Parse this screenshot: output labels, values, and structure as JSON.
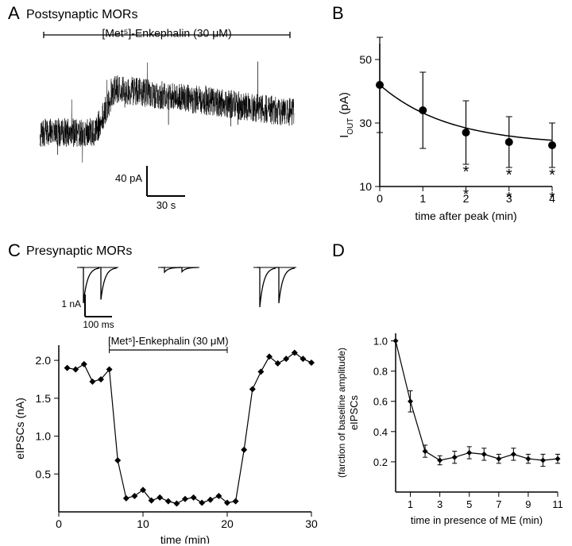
{
  "panelA": {
    "label": "A",
    "title": "Postsynaptic MORs",
    "drug_label": "[Met⁵]-Enkephalin (30 μM)",
    "scalebar": {
      "y_value": "40 pA",
      "x_value": "30 s"
    },
    "trace": {
      "baseline_y": 60,
      "peak_y": 20,
      "noise_amp": 18,
      "onset_x": 70,
      "color": "#000000"
    }
  },
  "panelB": {
    "label": "B",
    "xlabel": "time after peak (min)",
    "ylabel": "I",
    "ylabel_sub": "OUT",
    "ylabel_unit": "(pA)",
    "xlim": [
      0,
      4
    ],
    "ylim": [
      10,
      55
    ],
    "xticks": [
      0,
      1,
      2,
      3,
      4
    ],
    "yticks": [
      10,
      30,
      50
    ],
    "points": [
      {
        "x": 0,
        "y": 42,
        "err": 15,
        "star": false
      },
      {
        "x": 1,
        "y": 34,
        "err": 12,
        "star": false
      },
      {
        "x": 2,
        "y": 27,
        "err": 10,
        "star": true
      },
      {
        "x": 3,
        "y": 24,
        "err": 8,
        "star": true
      },
      {
        "x": 4,
        "y": 23,
        "err": 7,
        "star": true
      }
    ],
    "line_color": "#000000",
    "marker_fill": "#000000"
  },
  "panelC": {
    "label": "C",
    "title": "Presynaptic MORs",
    "drug_label": "[Met⁵]-Enkephalin (30 μM)",
    "inset_scalebar": {
      "y_value": "1 nA",
      "x_value": "100 ms"
    },
    "xlabel": "time (min)",
    "ylabel": "eIPSCs (nA)",
    "xlim": [
      0,
      30
    ],
    "ylim": [
      0,
      2.2
    ],
    "xticks": [
      0,
      10,
      20,
      30
    ],
    "yticks": [
      0.5,
      1.0,
      1.5,
      2.0
    ],
    "bar_start": 6,
    "bar_end": 20,
    "points": [
      {
        "x": 1,
        "y": 1.9
      },
      {
        "x": 2,
        "y": 1.88
      },
      {
        "x": 3,
        "y": 1.95
      },
      {
        "x": 4,
        "y": 1.72
      },
      {
        "x": 5,
        "y": 1.75
      },
      {
        "x": 6,
        "y": 1.88
      },
      {
        "x": 7,
        "y": 0.68
      },
      {
        "x": 8,
        "y": 0.18
      },
      {
        "x": 9,
        "y": 0.21
      },
      {
        "x": 10,
        "y": 0.29
      },
      {
        "x": 11,
        "y": 0.15
      },
      {
        "x": 12,
        "y": 0.19
      },
      {
        "x": 13,
        "y": 0.14
      },
      {
        "x": 14,
        "y": 0.11
      },
      {
        "x": 15,
        "y": 0.17
      },
      {
        "x": 16,
        "y": 0.19
      },
      {
        "x": 17,
        "y": 0.12
      },
      {
        "x": 18,
        "y": 0.16
      },
      {
        "x": 19,
        "y": 0.21
      },
      {
        "x": 20,
        "y": 0.12
      },
      {
        "x": 21,
        "y": 0.14
      },
      {
        "x": 22,
        "y": 0.82
      },
      {
        "x": 23,
        "y": 1.62
      },
      {
        "x": 24,
        "y": 1.85
      },
      {
        "x": 25,
        "y": 2.05
      },
      {
        "x": 26,
        "y": 1.96
      },
      {
        "x": 27,
        "y": 2.02
      },
      {
        "x": 28,
        "y": 2.1
      },
      {
        "x": 29,
        "y": 2.02
      },
      {
        "x": 30,
        "y": 1.97
      }
    ],
    "marker_color": "#000000"
  },
  "panelD": {
    "label": "D",
    "xlabel": "time in presence of ME (min)",
    "ylabel": "eIPSCs",
    "ylabel2": "(farction of baseline amplitude)",
    "xlim": [
      0,
      11
    ],
    "ylim": [
      0,
      1.05
    ],
    "xticks": [
      1,
      3,
      5,
      7,
      9,
      11
    ],
    "yticks": [
      0.2,
      0.4,
      0.6,
      0.8,
      1.0
    ],
    "points": [
      {
        "x": 0,
        "y": 1.0,
        "err": 0
      },
      {
        "x": 1,
        "y": 0.6,
        "err": 0.07
      },
      {
        "x": 2,
        "y": 0.27,
        "err": 0.04
      },
      {
        "x": 3,
        "y": 0.21,
        "err": 0.03
      },
      {
        "x": 4,
        "y": 0.23,
        "err": 0.04
      },
      {
        "x": 5,
        "y": 0.26,
        "err": 0.04
      },
      {
        "x": 6,
        "y": 0.25,
        "err": 0.04
      },
      {
        "x": 7,
        "y": 0.22,
        "err": 0.03
      },
      {
        "x": 8,
        "y": 0.25,
        "err": 0.04
      },
      {
        "x": 9,
        "y": 0.22,
        "err": 0.03
      },
      {
        "x": 10,
        "y": 0.21,
        "err": 0.04
      },
      {
        "x": 11,
        "y": 0.22,
        "err": 0.03
      }
    ],
    "marker_color": "#000000"
  }
}
